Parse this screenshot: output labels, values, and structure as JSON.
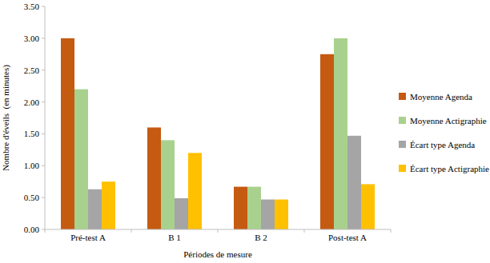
{
  "chart_data": {
    "type": "bar",
    "x_label": "Périodes de mesure",
    "y_label": "Nombre d'éveils  (en minutes)",
    "categories": [
      "Pré-test A",
      "B 1",
      "B 2",
      "Post-test A"
    ],
    "series": [
      {
        "name": "Moyenne Agenda",
        "color": "#c55a11",
        "values": [
          3.0,
          1.6,
          0.67,
          2.75
        ]
      },
      {
        "name": "Moyenne Actigraphie",
        "color": "#a9d18e",
        "values": [
          2.2,
          1.4,
          0.67,
          3.0
        ]
      },
      {
        "name": "Écart type Agenda",
        "color": "#a5a5a5",
        "values": [
          0.63,
          0.49,
          0.47,
          1.47
        ]
      },
      {
        "name": "Écart type Actigraphie",
        "color": "#ffc000",
        "values": [
          0.75,
          1.2,
          0.47,
          0.71
        ]
      }
    ],
    "ylim": [
      0,
      3.5
    ],
    "yticks": [
      {
        "value": 0,
        "label": "0.00"
      },
      {
        "value": 0.5,
        "label": "0.50"
      },
      {
        "value": 1,
        "label": "1.00"
      },
      {
        "value": 1.5,
        "label": "1.50"
      },
      {
        "value": 2,
        "label": "2.00"
      },
      {
        "value": 2.5,
        "label": "2.50"
      },
      {
        "value": 3,
        "label": "3.00"
      },
      {
        "value": 3.5,
        "label": "3.50"
      }
    ],
    "grid": false,
    "legend": "right"
  }
}
